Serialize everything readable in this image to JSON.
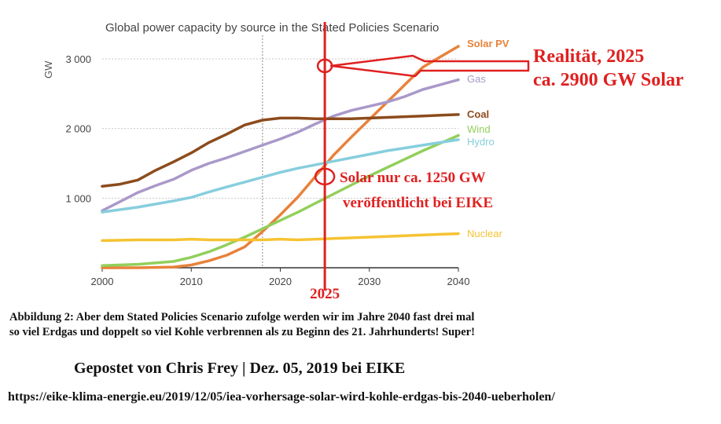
{
  "chart_data": {
    "type": "line",
    "title": "Global power capacity by source in the Stated Policies Scenario",
    "ylabel": "GW",
    "xlabel": "",
    "xlim": [
      2000,
      2040
    ],
    "ylim": [
      0,
      3200
    ],
    "xticks": [
      2000,
      2010,
      2020,
      2030,
      2040
    ],
    "yticks": [
      {
        "value": 1000,
        "label": "1 000"
      },
      {
        "value": 2000,
        "label": "2 000"
      },
      {
        "value": 3000,
        "label": "3 000"
      }
    ],
    "series": [
      {
        "name": "Solar PV",
        "color": "#e8823b",
        "x": [
          2000,
          2004,
          2008,
          2010,
          2012,
          2014,
          2016,
          2018,
          2020,
          2022,
          2024,
          2026,
          2028,
          2030,
          2032,
          2034,
          2036,
          2038,
          2040
        ],
        "values": [
          0,
          0,
          10,
          40,
          100,
          180,
          300,
          520,
          760,
          1020,
          1320,
          1620,
          1880,
          2130,
          2380,
          2630,
          2880,
          3030,
          3180
        ]
      },
      {
        "name": "Gas",
        "color": "#a999c9",
        "x": [
          2000,
          2002,
          2004,
          2006,
          2008,
          2010,
          2012,
          2014,
          2016,
          2018,
          2020,
          2022,
          2024,
          2026,
          2028,
          2030,
          2032,
          2034,
          2036,
          2038,
          2040
        ],
        "values": [
          820,
          950,
          1080,
          1180,
          1270,
          1400,
          1500,
          1580,
          1670,
          1760,
          1850,
          1950,
          2070,
          2180,
          2260,
          2320,
          2380,
          2460,
          2560,
          2630,
          2700
        ]
      },
      {
        "name": "Coal",
        "color": "#8c4b1c",
        "x": [
          2000,
          2002,
          2004,
          2006,
          2008,
          2010,
          2012,
          2014,
          2016,
          2018,
          2020,
          2022,
          2024,
          2026,
          2028,
          2030,
          2032,
          2034,
          2036,
          2038,
          2040
        ],
        "values": [
          1170,
          1200,
          1260,
          1400,
          1520,
          1650,
          1800,
          1920,
          2050,
          2120,
          2150,
          2150,
          2140,
          2140,
          2140,
          2150,
          2160,
          2170,
          2180,
          2190,
          2200
        ]
      },
      {
        "name": "Wind",
        "color": "#92cf5b",
        "x": [
          2000,
          2004,
          2008,
          2010,
          2012,
          2014,
          2016,
          2018,
          2020,
          2022,
          2024,
          2026,
          2028,
          2030,
          2032,
          2034,
          2036,
          2038,
          2040
        ],
        "values": [
          30,
          50,
          90,
          150,
          230,
          330,
          440,
          560,
          680,
          800,
          930,
          1060,
          1190,
          1320,
          1440,
          1560,
          1680,
          1790,
          1900
        ]
      },
      {
        "name": "Hydro",
        "color": "#87cedd",
        "x": [
          2000,
          2004,
          2008,
          2010,
          2012,
          2014,
          2016,
          2018,
          2020,
          2022,
          2024,
          2026,
          2028,
          2030,
          2032,
          2034,
          2036,
          2038,
          2040
        ],
        "values": [
          800,
          870,
          960,
          1010,
          1090,
          1160,
          1230,
          1300,
          1370,
          1430,
          1480,
          1530,
          1580,
          1630,
          1680,
          1720,
          1760,
          1800,
          1840
        ]
      },
      {
        "name": "Nuclear",
        "color": "#f5c332",
        "x": [
          2000,
          2004,
          2008,
          2010,
          2012,
          2014,
          2016,
          2018,
          2020,
          2022,
          2024,
          2026,
          2028,
          2030,
          2032,
          2034,
          2036,
          2038,
          2040
        ],
        "values": [
          390,
          400,
          400,
          410,
          400,
          400,
          400,
          400,
          410,
          400,
          410,
          420,
          430,
          440,
          450,
          460,
          470,
          480,
          490
        ]
      }
    ],
    "reference_line": {
      "x": 2018,
      "style": "dotted"
    },
    "annotations": {
      "marker_year": "2025",
      "top_text_line1": "Realität, 2025",
      "top_text_line2": "ca. 2900 GW Solar",
      "mid_text_line1": "Solar nur ca. 1250 GW",
      "mid_text_line2": "veröffentlicht bei EIKE",
      "circle_top": {
        "x": 2025,
        "y": 2900
      },
      "circle_mid": {
        "x": 2025,
        "y": 1310
      },
      "annotation_color": "#e02020"
    }
  },
  "caption": {
    "line1": "Abbildung 2: Aber dem Stated Policies Scenario zufolge werden wir im Jahre 2040 fast drei mal",
    "line2": "so viel Erdgas und doppelt so viel Kohle verbrennen als zu Beginn des 21. Jahrhunderts! Super!"
  },
  "posted_by": "Gepostet von Chris Frey | Dez. 05, 2019 bei EIKE",
  "source_url": "https://eike-klima-energie.eu/2019/12/05/iea-vorhersage-solar-wird-kohle-erdgas-bis-2040-ueberholen/"
}
